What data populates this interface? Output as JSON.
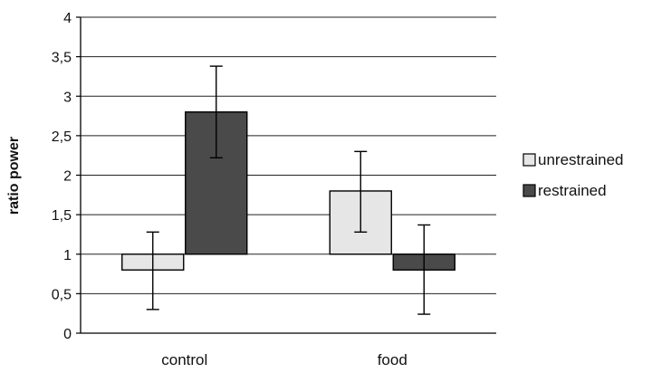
{
  "chart_data": {
    "type": "bar",
    "title": "",
    "xlabel": "",
    "ylabel": "ratio power",
    "baseline": 1,
    "ylim": [
      0,
      4
    ],
    "yticks": [
      "0",
      "0,5",
      "1",
      "1,5",
      "2",
      "2,5",
      "3",
      "3,5",
      "4"
    ],
    "yticks_values": [
      0,
      0.5,
      1,
      1.5,
      2,
      2.5,
      3,
      3.5,
      4
    ],
    "grid": true,
    "legend_position": "right",
    "categories": [
      "control",
      "food"
    ],
    "series": [
      {
        "name": "unrestrained",
        "color": "#e6e6e6",
        "values": [
          0.8,
          1.8
        ],
        "error_low": [
          0.3,
          1.28
        ],
        "error_high": [
          1.28,
          2.3
        ]
      },
      {
        "name": "restrained",
        "color": "#4a4a4a",
        "values": [
          2.8,
          0.8
        ],
        "error_low": [
          2.22,
          0.24
        ],
        "error_high": [
          3.38,
          1.37
        ]
      }
    ]
  }
}
